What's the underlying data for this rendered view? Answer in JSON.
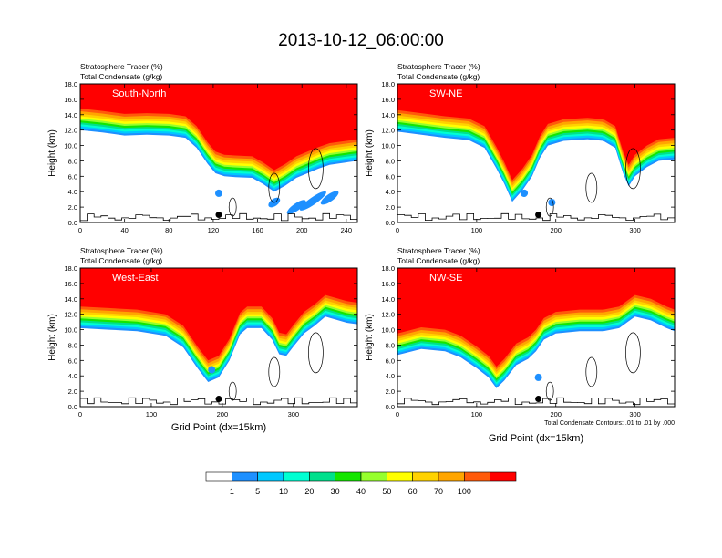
{
  "title": "2013-10-12_06:00:00",
  "chart_data": [
    {
      "type": "heatmap",
      "label": "South-North",
      "var1": "Stratosphere Tracer   (%)",
      "var2": "Total Condensate   (g/kg)",
      "xlabel": "",
      "ylabel": "Height (km)",
      "xlim": [
        0,
        250
      ],
      "ylim": [
        0,
        18
      ],
      "xticks": [
        "0",
        "40",
        "80",
        "120",
        "160",
        "200",
        "240"
      ],
      "yticks": [
        "0.0",
        "2.0",
        "4.0",
        "6.0",
        "8.0",
        "10.0",
        "12.0",
        "14.0",
        "16.0",
        "18.0"
      ],
      "trop_edge": [
        [
          0,
          14.8
        ],
        [
          20,
          14.5
        ],
        [
          40,
          14.1
        ],
        [
          60,
          14.2
        ],
        [
          80,
          14.1
        ],
        [
          95,
          13.8
        ],
        [
          105,
          12.5
        ],
        [
          115,
          10.4
        ],
        [
          122,
          9.2
        ],
        [
          130,
          8.8
        ],
        [
          140,
          8.7
        ],
        [
          155,
          8.6
        ],
        [
          165,
          7.8
        ],
        [
          175,
          6.8
        ],
        [
          185,
          7.6
        ],
        [
          195,
          8.6
        ],
        [
          205,
          9.2
        ],
        [
          215,
          9.8
        ],
        [
          225,
          10.3
        ],
        [
          240,
          10.6
        ],
        [
          250,
          10.8
        ]
      ],
      "intrusions": [
        [
          125,
          3.8,
          4
        ],
        [
          175,
          2.6,
          10
        ],
        [
          195,
          2.0,
          17
        ],
        [
          210,
          2.8,
          24
        ],
        [
          225,
          3.2,
          16
        ]
      ],
      "marker_x": 125
    },
    {
      "type": "heatmap",
      "label": "SW-NE",
      "var1": "Stratosphere Tracer   (%)",
      "var2": "Total Condensate   (g/kg)",
      "xlabel": "",
      "ylabel": "Height (km)",
      "xlim": [
        0,
        350
      ],
      "ylim": [
        0,
        18
      ],
      "xticks": [
        "0",
        "100",
        "200",
        "300"
      ],
      "yticks": [
        "0.0",
        "2.0",
        "4.0",
        "6.0",
        "8.0",
        "10.0",
        "12.0",
        "14.0",
        "16.0",
        "18.0"
      ],
      "trop_edge": [
        [
          0,
          14.6
        ],
        [
          30,
          14.2
        ],
        [
          60,
          13.8
        ],
        [
          90,
          13.5
        ],
        [
          110,
          12.5
        ],
        [
          125,
          9.8
        ],
        [
          135,
          7.8
        ],
        [
          145,
          5.5
        ],
        [
          158,
          7.0
        ],
        [
          170,
          8.8
        ],
        [
          180,
          11.2
        ],
        [
          190,
          12.8
        ],
        [
          210,
          13.4
        ],
        [
          240,
          13.6
        ],
        [
          260,
          13.4
        ],
        [
          275,
          12.5
        ],
        [
          285,
          9.2
        ],
        [
          292,
          7.5
        ],
        [
          300,
          8.8
        ],
        [
          315,
          10.0
        ],
        [
          330,
          10.8
        ],
        [
          350,
          11.0
        ]
      ],
      "intrusions": [
        [
          160,
          3.8,
          8
        ],
        [
          195,
          2.6,
          6
        ]
      ],
      "marker_x": 178
    },
    {
      "type": "heatmap",
      "label": "West-East",
      "var1": "Stratosphere Tracer   (%)",
      "var2": "Total Condensate   (g/kg)",
      "xlabel": "Grid Point (dx=15km)",
      "ylabel": "Height (km)",
      "xlim": [
        0,
        390
      ],
      "ylim": [
        0,
        18
      ],
      "xticks": [
        "0",
        "100",
        "200",
        "300"
      ],
      "yticks": [
        "0.0",
        "2.0",
        "4.0",
        "6.0",
        "8.0",
        "10.0",
        "12.0",
        "14.0",
        "16.0",
        "18.0"
      ],
      "trop_edge": [
        [
          0,
          13.0
        ],
        [
          40,
          12.8
        ],
        [
          80,
          12.6
        ],
        [
          120,
          12.0
        ],
        [
          145,
          10.5
        ],
        [
          165,
          7.8
        ],
        [
          180,
          6.0
        ],
        [
          195,
          6.6
        ],
        [
          210,
          8.8
        ],
        [
          225,
          12.2
        ],
        [
          235,
          13.0
        ],
        [
          255,
          13.0
        ],
        [
          270,
          11.5
        ],
        [
          280,
          9.6
        ],
        [
          290,
          9.4
        ],
        [
          300,
          10.6
        ],
        [
          315,
          12.3
        ],
        [
          330,
          13.3
        ],
        [
          345,
          14.5
        ],
        [
          360,
          14.1
        ],
        [
          375,
          13.7
        ],
        [
          390,
          13.5
        ]
      ],
      "intrusions": [
        [
          185,
          4.8,
          5
        ]
      ],
      "marker_x": 195
    },
    {
      "type": "heatmap",
      "label": "NW-SE",
      "var1": "Stratosphere Tracer   (%)",
      "var2": "Total Condensate   (g/kg)",
      "xlabel": "Grid Point (dx=15km)",
      "ylabel": "Height (km)",
      "xlim": [
        0,
        350
      ],
      "ylim": [
        0,
        18
      ],
      "xticks": [
        "0",
        "100",
        "200",
        "300"
      ],
      "yticks": [
        "0.0",
        "2.0",
        "4.0",
        "6.0",
        "8.0",
        "10.0",
        "12.0",
        "14.0",
        "16.0",
        "18.0"
      ],
      "trop_edge": [
        [
          0,
          9.5
        ],
        [
          30,
          10.3
        ],
        [
          60,
          10.0
        ],
        [
          80,
          9.2
        ],
        [
          100,
          7.8
        ],
        [
          115,
          6.6
        ],
        [
          125,
          5.2
        ],
        [
          135,
          6.2
        ],
        [
          150,
          8.2
        ],
        [
          165,
          9.0
        ],
        [
          175,
          10.0
        ],
        [
          185,
          11.5
        ],
        [
          200,
          12.3
        ],
        [
          230,
          12.6
        ],
        [
          260,
          12.6
        ],
        [
          280,
          13.0
        ],
        [
          300,
          14.5
        ],
        [
          320,
          14.0
        ],
        [
          340,
          13.0
        ],
        [
          350,
          12.6
        ]
      ],
      "intrusions": [
        [
          178,
          3.8,
          6
        ]
      ],
      "marker_x": 178,
      "note": "Total Condensate Contours: .01 to .01 by .000"
    }
  ],
  "colorbar": {
    "labels": [
      "1",
      "5",
      "10",
      "20",
      "30",
      "40",
      "50",
      "60",
      "70",
      "100"
    ],
    "colors": [
      "#ffffff",
      "#1e90ff",
      "#00c8ff",
      "#00ffd2",
      "#00e08c",
      "#14e600",
      "#96ff2d",
      "#ffff00",
      "#ffd200",
      "#ffa500",
      "#ff5a0a",
      "#ff0000"
    ]
  }
}
